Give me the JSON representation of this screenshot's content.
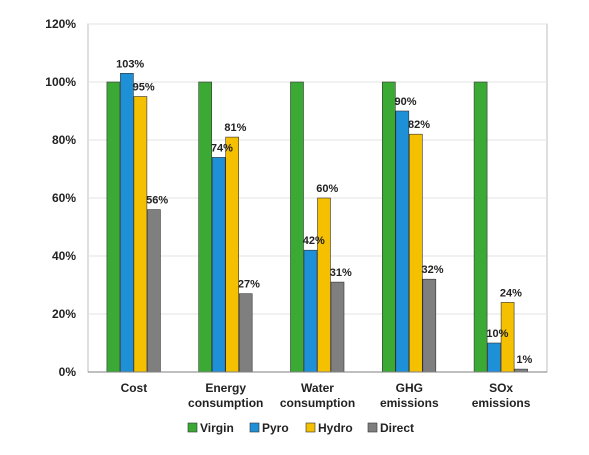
{
  "chart_data": {
    "type": "bar",
    "categories": [
      [
        "Cost"
      ],
      [
        "Energy",
        "consumption"
      ],
      [
        "Water",
        "consumption"
      ],
      [
        "GHG",
        "emissions"
      ],
      [
        "SOx",
        "emissions"
      ]
    ],
    "series": [
      {
        "name": "Virgin",
        "color": "#3aaa35",
        "values": [
          100,
          100,
          100,
          100,
          100
        ],
        "labels": [
          "",
          "",
          "",
          "",
          ""
        ]
      },
      {
        "name": "Pyro",
        "color": "#1e90d8",
        "values": [
          103,
          74,
          42,
          90,
          10
        ],
        "labels": [
          "103%",
          "74%",
          "42%",
          "90%",
          "10%"
        ]
      },
      {
        "name": "Hydro",
        "color": "#f5c000",
        "values": [
          95,
          81,
          60,
          82,
          24
        ],
        "labels": [
          "95%",
          "81%",
          "60%",
          "82%",
          "24%"
        ]
      },
      {
        "name": "Direct",
        "color": "#7f7f7f",
        "values": [
          56,
          27,
          31,
          32,
          1
        ],
        "labels": [
          "56%",
          "27%",
          "31%",
          "32%",
          "1%"
        ]
      }
    ],
    "ylim": [
      0,
      120
    ],
    "yticks": [
      0,
      20,
      40,
      60,
      80,
      100,
      120
    ],
    "ytick_labels": [
      "0%",
      "20%",
      "40%",
      "60%",
      "80%",
      "100%",
      "120%"
    ],
    "title": "",
    "xlabel": "",
    "ylabel": "",
    "grid": true,
    "legend": "bottom"
  }
}
